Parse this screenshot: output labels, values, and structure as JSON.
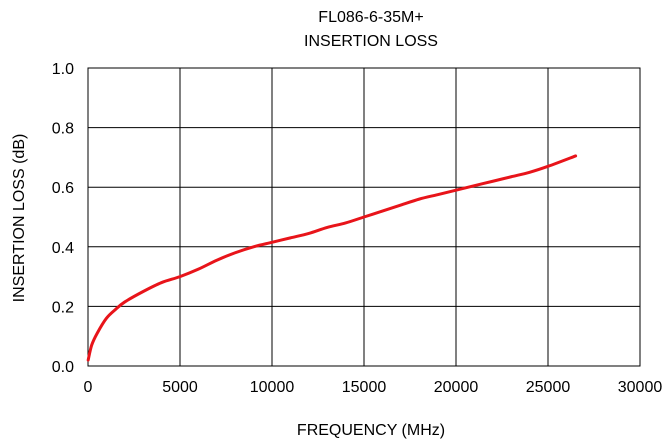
{
  "chart_data": {
    "type": "line",
    "title": "FL086-6-35M+",
    "subtitle": "INSERTION LOSS",
    "xlabel": "FREQUENCY (MHz)",
    "ylabel": "INSERTION LOSS (dB)",
    "xlim": [
      0,
      30000
    ],
    "ylim": [
      0,
      1.0
    ],
    "xticks": [
      0,
      5000,
      10000,
      15000,
      20000,
      25000,
      30000
    ],
    "xtick_labels": [
      "0",
      "5000",
      "10000",
      "15000",
      "20000",
      "25000",
      "30000"
    ],
    "yticks": [
      0,
      0.2,
      0.4,
      0.6,
      0.8,
      1.0
    ],
    "ytick_labels": [
      "0.0",
      "0.2",
      "0.4",
      "0.6",
      "0.8",
      "1.0"
    ],
    "grid": true,
    "legend": "none",
    "series": [
      {
        "color": "#e8141a",
        "x": [
          10,
          200,
          500,
          1000,
          1500,
          2000,
          3000,
          4000,
          5000,
          6000,
          7000,
          8000,
          9000,
          10000,
          11000,
          12000,
          13000,
          14000,
          15000,
          16000,
          17000,
          18000,
          19000,
          20000,
          21000,
          22000,
          23000,
          24000,
          25000,
          26500
        ],
        "y": [
          0.02,
          0.07,
          0.11,
          0.16,
          0.19,
          0.215,
          0.25,
          0.28,
          0.3,
          0.325,
          0.355,
          0.38,
          0.4,
          0.415,
          0.43,
          0.445,
          0.465,
          0.48,
          0.5,
          0.52,
          0.54,
          0.56,
          0.575,
          0.59,
          0.605,
          0.62,
          0.635,
          0.65,
          0.67,
          0.705
        ]
      }
    ]
  }
}
